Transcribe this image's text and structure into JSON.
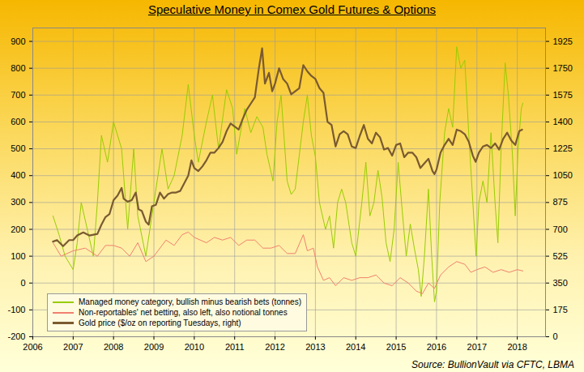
{
  "chart_data": {
    "type": "line",
    "title": "Speculative Money in Comex Gold Futures & Options",
    "caption": "Source: BullionVault via CFTC, LBMA",
    "xlim": [
      2006,
      2018.7
    ],
    "xticks": [
      2006,
      2007,
      2008,
      2009,
      2010,
      2011,
      2012,
      2013,
      2014,
      2015,
      2016,
      2017,
      2018
    ],
    "ylim": [
      -200,
      950
    ],
    "yticks": [
      -200,
      -100,
      0,
      100,
      200,
      300,
      400,
      500,
      600,
      700,
      800,
      900
    ],
    "y2lim": [
      0,
      2012.5
    ],
    "y2ticks": [
      0,
      175,
      350,
      525,
      700,
      875,
      1050,
      1225,
      1400,
      1575,
      1750,
      1925
    ],
    "grid": true,
    "legend": "bottom left",
    "series": [
      {
        "name": "Managed money category, bullish minus bearish bets (tonnes)",
        "color": "#99cc00",
        "axis": "y",
        "x": [
          2006.5,
          2006.65,
          2006.8,
          2007.0,
          2007.1,
          2007.2,
          2007.35,
          2007.5,
          2007.6,
          2007.7,
          2007.85,
          2008.0,
          2008.1,
          2008.2,
          2008.35,
          2008.5,
          2008.6,
          2008.8,
          2009.0,
          2009.2,
          2009.35,
          2009.5,
          2009.7,
          2009.85,
          2010.0,
          2010.1,
          2010.3,
          2010.45,
          2010.6,
          2010.8,
          2010.95,
          2011.05,
          2011.25,
          2011.4,
          2011.55,
          2011.7,
          2011.8,
          2011.95,
          2012.05,
          2012.15,
          2012.3,
          2012.4,
          2012.5,
          2012.7,
          2012.8,
          2012.9,
          2013.0,
          2013.1,
          2013.25,
          2013.35,
          2013.45,
          2013.55,
          2013.65,
          2013.75,
          2013.9,
          2014.0,
          2014.15,
          2014.25,
          2014.35,
          2014.45,
          2014.55,
          2014.65,
          2014.75,
          2014.85,
          2014.95,
          2015.05,
          2015.15,
          2015.25,
          2015.35,
          2015.45,
          2015.55,
          2015.62,
          2015.7,
          2015.8,
          2015.88,
          2015.95,
          2016.0,
          2016.08,
          2016.2,
          2016.3,
          2016.4,
          2016.5,
          2016.6,
          2016.7,
          2016.8,
          2016.9,
          2016.98,
          2017.05,
          2017.15,
          2017.25,
          2017.35,
          2017.45,
          2017.52,
          2017.6,
          2017.7,
          2017.78,
          2017.88,
          2017.95,
          2018.02,
          2018.1,
          2018.14
        ],
        "values": [
          250,
          180,
          100,
          50,
          150,
          300,
          200,
          100,
          300,
          550,
          450,
          600,
          550,
          500,
          200,
          500,
          250,
          100,
          300,
          500,
          350,
          400,
          550,
          740,
          550,
          450,
          600,
          700,
          500,
          720,
          650,
          480,
          650,
          560,
          620,
          580,
          480,
          380,
          600,
          700,
          380,
          330,
          350,
          600,
          700,
          550,
          470,
          300,
          200,
          250,
          130,
          300,
          350,
          300,
          150,
          100,
          300,
          450,
          250,
          300,
          420,
          320,
          150,
          80,
          200,
          450,
          270,
          100,
          220,
          130,
          50,
          -50,
          100,
          350,
          100,
          -70,
          -30,
          300,
          560,
          650,
          580,
          880,
          800,
          830,
          550,
          300,
          100,
          300,
          380,
          300,
          560,
          300,
          150,
          500,
          820,
          700,
          480,
          250,
          500,
          650,
          670
        ]
      },
      {
        "name": "Non-reportables' net betting, also left, also notional tonnes",
        "color": "#f08070",
        "axis": "y",
        "x": [
          2006.5,
          2006.7,
          2007.0,
          2007.3,
          2007.6,
          2007.8,
          2008.0,
          2008.2,
          2008.4,
          2008.6,
          2008.8,
          2009.0,
          2009.3,
          2009.5,
          2009.7,
          2009.85,
          2010.0,
          2010.3,
          2010.5,
          2010.7,
          2010.9,
          2011.1,
          2011.3,
          2011.5,
          2011.7,
          2011.9,
          2012.1,
          2012.3,
          2012.5,
          2012.7,
          2012.8,
          2012.95,
          2013.05,
          2013.2,
          2013.35,
          2013.5,
          2013.7,
          2013.9,
          2014.1,
          2014.3,
          2014.5,
          2014.7,
          2014.9,
          2015.1,
          2015.3,
          2015.5,
          2015.65,
          2015.8,
          2015.95,
          2016.1,
          2016.3,
          2016.5,
          2016.7,
          2016.85,
          2017.0,
          2017.2,
          2017.4,
          2017.6,
          2017.8,
          2018.0,
          2018.14
        ],
        "values": [
          150,
          100,
          120,
          130,
          100,
          140,
          140,
          130,
          100,
          150,
          80,
          100,
          160,
          140,
          180,
          190,
          170,
          150,
          170,
          160,
          170,
          140,
          160,
          160,
          130,
          130,
          140,
          110,
          110,
          180,
          120,
          130,
          60,
          10,
          20,
          -10,
          20,
          10,
          20,
          20,
          30,
          0,
          -10,
          20,
          0,
          -30,
          -40,
          0,
          -20,
          30,
          60,
          80,
          70,
          40,
          50,
          60,
          40,
          50,
          40,
          50,
          45
        ]
      },
      {
        "name": "Gold price ($/oz on reporting Tuesdays, right)",
        "color": "#7a5a30",
        "axis": "y2",
        "x": [
          2006.5,
          2006.6,
          2006.75,
          2006.9,
          2007.0,
          2007.1,
          2007.25,
          2007.4,
          2007.5,
          2007.6,
          2007.7,
          2007.8,
          2007.9,
          2008.0,
          2008.1,
          2008.2,
          2008.25,
          2008.35,
          2008.45,
          2008.55,
          2008.62,
          2008.7,
          2008.8,
          2008.87,
          2008.95,
          2009.05,
          2009.15,
          2009.25,
          2009.35,
          2009.45,
          2009.55,
          2009.65,
          2009.75,
          2009.85,
          2009.93,
          2010.0,
          2010.1,
          2010.2,
          2010.3,
          2010.4,
          2010.5,
          2010.6,
          2010.7,
          2010.8,
          2010.9,
          2011.0,
          2011.1,
          2011.2,
          2011.3,
          2011.4,
          2011.5,
          2011.6,
          2011.68,
          2011.75,
          2011.85,
          2011.93,
          2012.0,
          2012.1,
          2012.2,
          2012.3,
          2012.4,
          2012.5,
          2012.6,
          2012.7,
          2012.8,
          2012.9,
          2013.0,
          2013.1,
          2013.2,
          2013.3,
          2013.4,
          2013.5,
          2013.6,
          2013.7,
          2013.8,
          2013.9,
          2014.0,
          2014.1,
          2014.2,
          2014.3,
          2014.4,
          2014.5,
          2014.6,
          2014.7,
          2014.8,
          2014.9,
          2015.0,
          2015.1,
          2015.2,
          2015.3,
          2015.4,
          2015.5,
          2015.6,
          2015.7,
          2015.8,
          2015.9,
          2015.95,
          2016.0,
          2016.1,
          2016.2,
          2016.3,
          2016.4,
          2016.5,
          2016.6,
          2016.7,
          2016.8,
          2016.9,
          2016.97,
          2017.05,
          2017.15,
          2017.25,
          2017.35,
          2017.45,
          2017.55,
          2017.65,
          2017.75,
          2017.85,
          2017.95,
          2018.05,
          2018.12
        ],
        "values": [
          620,
          630,
          590,
          630,
          630,
          660,
          680,
          660,
          665,
          670,
          730,
          780,
          800,
          890,
          920,
          970,
          900,
          880,
          890,
          940,
          830,
          820,
          750,
          730,
          850,
          860,
          940,
          900,
          930,
          940,
          940,
          950,
          1000,
          1050,
          1150,
          1100,
          1080,
          1110,
          1150,
          1200,
          1200,
          1230,
          1270,
          1340,
          1390,
          1370,
          1350,
          1420,
          1480,
          1520,
          1560,
          1750,
          1880,
          1650,
          1720,
          1600,
          1650,
          1750,
          1680,
          1650,
          1580,
          1600,
          1620,
          1770,
          1730,
          1700,
          1680,
          1620,
          1590,
          1400,
          1380,
          1240,
          1320,
          1340,
          1320,
          1240,
          1230,
          1310,
          1380,
          1290,
          1260,
          1330,
          1300,
          1220,
          1230,
          1180,
          1250,
          1260,
          1170,
          1200,
          1200,
          1170,
          1100,
          1130,
          1160,
          1080,
          1060,
          1090,
          1200,
          1250,
          1290,
          1250,
          1350,
          1340,
          1320,
          1270,
          1180,
          1140,
          1200,
          1240,
          1250,
          1230,
          1260,
          1220,
          1290,
          1330,
          1280,
          1250,
          1340,
          1350
        ]
      }
    ]
  }
}
